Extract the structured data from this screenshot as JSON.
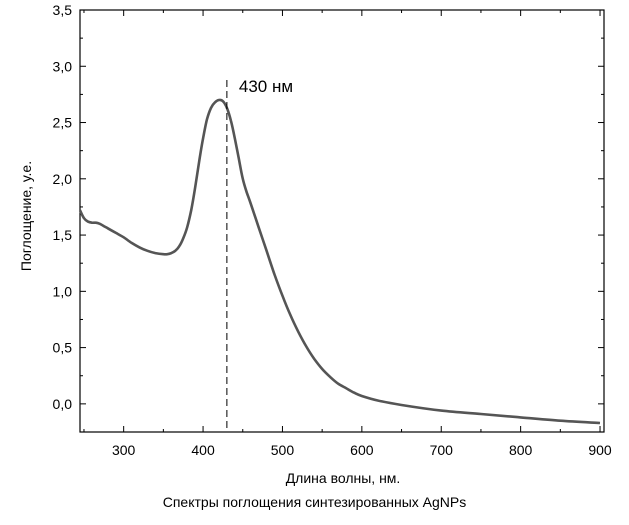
{
  "chart_data": {
    "type": "line",
    "title": "",
    "xlabel": "Длина волны, нм.",
    "ylabel": "Поглощение, у.е.",
    "xlim": [
      245,
      905
    ],
    "ylim": [
      -0.25,
      3.5
    ],
    "x_ticks": [
      300,
      400,
      500,
      600,
      700,
      800,
      900
    ],
    "x_tick_labels": [
      "300",
      "400",
      "500",
      "600",
      "700",
      "800",
      "900"
    ],
    "y_ticks": [
      0.0,
      0.5,
      1.0,
      1.5,
      2.0,
      2.5,
      3.0,
      3.5
    ],
    "y_tick_labels": [
      "0,0",
      "0,5",
      "1,0",
      "1,5",
      "2,0",
      "2,5",
      "3,0",
      "3,5"
    ],
    "grid": false,
    "series": [
      {
        "color": "#555555",
        "x": [
          245,
          250,
          255,
          260,
          265,
          270,
          275,
          280,
          290,
          300,
          310,
          320,
          330,
          340,
          350,
          355,
          360,
          365,
          370,
          375,
          380,
          385,
          390,
          395,
          400,
          405,
          410,
          415,
          420,
          425,
          430,
          435,
          440,
          445,
          450,
          455,
          460,
          470,
          480,
          490,
          500,
          510,
          520,
          530,
          540,
          550,
          560,
          570,
          580,
          590,
          600,
          620,
          650,
          700,
          750,
          800,
          850,
          900
        ],
        "y": [
          1.72,
          1.65,
          1.62,
          1.61,
          1.61,
          1.6,
          1.58,
          1.56,
          1.52,
          1.48,
          1.43,
          1.39,
          1.36,
          1.34,
          1.33,
          1.33,
          1.34,
          1.36,
          1.4,
          1.47,
          1.57,
          1.72,
          1.92,
          2.15,
          2.36,
          2.53,
          2.63,
          2.68,
          2.7,
          2.69,
          2.63,
          2.52,
          2.36,
          2.18,
          2.0,
          1.88,
          1.78,
          1.57,
          1.36,
          1.15,
          0.96,
          0.79,
          0.64,
          0.51,
          0.4,
          0.31,
          0.24,
          0.18,
          0.14,
          0.1,
          0.07,
          0.03,
          -0.01,
          -0.06,
          -0.09,
          -0.12,
          -0.15,
          -0.17
        ]
      }
    ],
    "annotations": [
      {
        "text": "430 нм",
        "x": 430,
        "line": "dashed-vertical"
      }
    ]
  },
  "caption": "Спектры поглощения синтезированных  AgNPs"
}
